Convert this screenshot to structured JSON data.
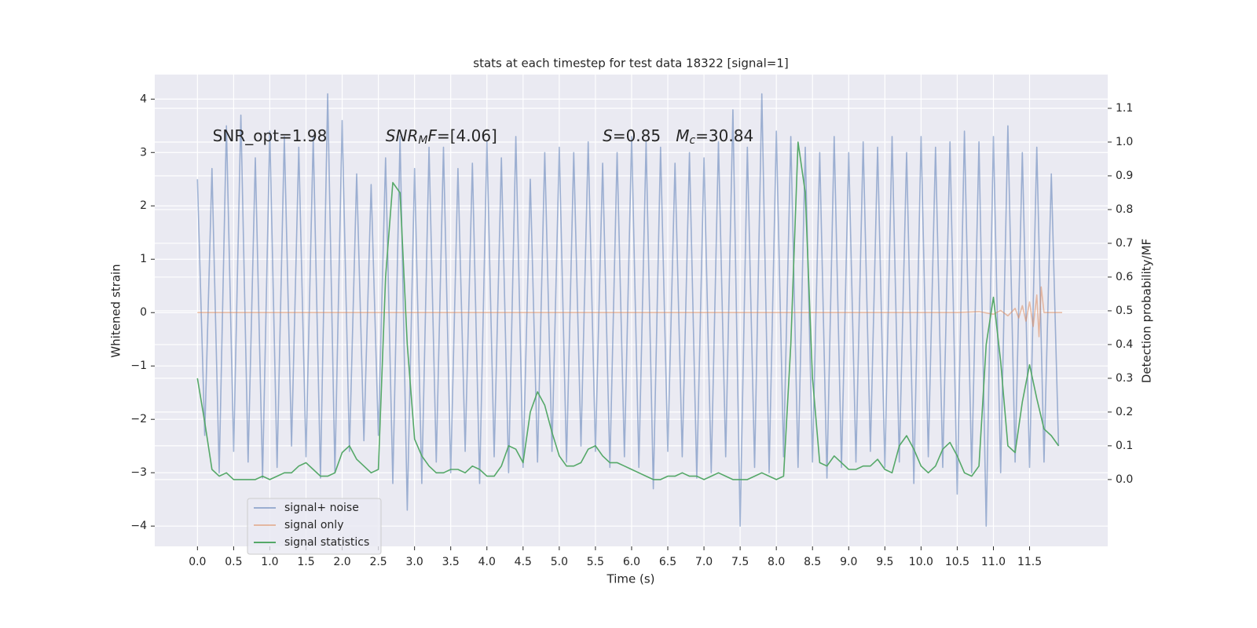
{
  "chart_data": {
    "type": "line",
    "title": "stats at each timestep for test data 18322 [signal=1]",
    "xlabel": "Time (s)",
    "ylabel": "Whitened strain",
    "y2label": "Detection probability/MF",
    "annotations": [
      {
        "parts": [
          {
            "text": "SNR_opt=1.98",
            "style": "normal"
          }
        ]
      },
      {
        "parts": [
          {
            "text": "SNR",
            "style": "italic"
          },
          {
            "text": "M",
            "style": "italic-sub"
          },
          {
            "text": "F",
            "style": "italic"
          },
          {
            "text": "=[4.06]",
            "style": "normal"
          }
        ]
      },
      {
        "parts": [
          {
            "text": "S",
            "style": "italic"
          },
          {
            "text": "=0.85   ",
            "style": "normal"
          },
          {
            "text": "M",
            "style": "italic"
          },
          {
            "text": "c",
            "style": "italic-sub"
          },
          {
            "text": "=30.84",
            "style": "normal"
          }
        ]
      }
    ],
    "x": [
      0.0,
      0.1,
      0.2,
      0.3,
      0.4,
      0.5,
      0.6,
      0.7,
      0.8,
      0.9,
      1.0,
      1.1,
      1.2,
      1.3,
      1.4,
      1.5,
      1.6,
      1.7,
      1.8,
      1.9,
      2.0,
      2.1,
      2.2,
      2.3,
      2.4,
      2.5,
      2.6,
      2.7,
      2.8,
      2.9,
      3.0,
      3.1,
      3.2,
      3.3,
      3.4,
      3.5,
      3.6,
      3.7,
      3.8,
      3.9,
      4.0,
      4.1,
      4.2,
      4.3,
      4.4,
      4.5,
      4.6,
      4.7,
      4.8,
      4.9,
      5.0,
      5.1,
      5.2,
      5.3,
      5.4,
      5.5,
      5.6,
      5.7,
      5.8,
      5.9,
      6.0,
      6.1,
      6.2,
      6.3,
      6.4,
      6.5,
      6.6,
      6.7,
      6.8,
      6.9,
      7.0,
      7.1,
      7.2,
      7.3,
      7.4,
      7.5,
      7.6,
      7.7,
      7.8,
      7.9,
      8.0,
      8.1,
      8.2,
      8.3,
      8.4,
      8.5,
      8.6,
      8.7,
      8.8,
      8.9,
      9.0,
      9.1,
      9.2,
      9.3,
      9.4,
      9.5,
      9.6,
      9.7,
      9.8,
      9.9,
      10.0,
      10.1,
      10.2,
      10.3,
      10.4,
      10.5,
      10.6,
      10.7,
      10.8,
      10.9,
      11.0,
      11.1,
      11.2,
      11.3,
      11.4,
      11.5,
      11.6,
      11.7,
      11.8,
      11.9
    ],
    "series": [
      {
        "name": "signal+ noise",
        "color": "#4c72b0",
        "opacity": 0.5,
        "values": [
          2.5,
          -2.3,
          2.7,
          -3.0,
          3.5,
          -2.6,
          3.7,
          -2.8,
          2.9,
          -3.1,
          3.4,
          -2.9,
          3.3,
          -2.5,
          3.1,
          -2.7,
          3.3,
          -3.1,
          4.1,
          -3.0,
          3.6,
          -2.6,
          2.6,
          -2.4,
          2.4,
          -2.3,
          2.9,
          -3.2,
          3.3,
          -3.7,
          2.7,
          -3.2,
          3.1,
          -2.8,
          3.1,
          -3.0,
          2.7,
          -2.6,
          2.8,
          -3.2,
          3.2,
          -2.7,
          2.9,
          -3.0,
          3.3,
          -2.9,
          2.5,
          -2.8,
          3.0,
          -2.6,
          3.1,
          -2.8,
          3.0,
          -2.5,
          3.2,
          -2.6,
          2.8,
          -2.9,
          3.0,
          -2.7,
          3.3,
          -2.9,
          3.2,
          -3.3,
          3.1,
          -2.6,
          2.8,
          -2.7,
          3.0,
          -3.1,
          2.9,
          -3.0,
          3.2,
          -2.7,
          3.8,
          -4.0,
          3.1,
          -2.9,
          4.1,
          -3.0,
          3.4,
          -2.7,
          3.3,
          -2.9,
          3.1,
          -2.8,
          3.0,
          -3.1,
          3.3,
          -2.9,
          3.0,
          -2.8,
          3.2,
          -2.6,
          3.1,
          -2.9,
          3.3,
          -2.8,
          3.0,
          -3.2,
          3.3,
          -2.7,
          3.1,
          -2.9,
          3.2,
          -3.4,
          3.4,
          -3.0,
          3.2,
          -4.0,
          3.3,
          -3.0,
          3.5,
          -2.8,
          3.0,
          -2.9,
          3.1,
          -2.8,
          2.6,
          -2.5
        ]
      },
      {
        "name": "signal only",
        "color": "#dd8452",
        "opacity": 0.5,
        "x": [
          0.0,
          10.5,
          10.8,
          11.0,
          11.1,
          11.2,
          11.3,
          11.35,
          11.4,
          11.45,
          11.5,
          11.55,
          11.6,
          11.63,
          11.66,
          11.7,
          11.95
        ],
        "values": [
          0,
          0,
          0.02,
          -0.03,
          0.04,
          -0.06,
          0.08,
          -0.1,
          0.13,
          -0.16,
          0.2,
          -0.26,
          0.33,
          -0.45,
          0.48,
          0,
          0
        ]
      },
      {
        "name": "signal statistics",
        "color": "#55a868",
        "opacity": 1,
        "axis": "y2",
        "values": [
          0.3,
          0.17,
          0.03,
          0.01,
          0.02,
          0.0,
          0.0,
          0.0,
          0.0,
          0.01,
          0.0,
          0.01,
          0.02,
          0.02,
          0.04,
          0.05,
          0.03,
          0.01,
          0.01,
          0.02,
          0.08,
          0.1,
          0.06,
          0.04,
          0.02,
          0.03,
          0.6,
          0.88,
          0.85,
          0.4,
          0.12,
          0.07,
          0.04,
          0.02,
          0.02,
          0.03,
          0.03,
          0.02,
          0.04,
          0.03,
          0.01,
          0.01,
          0.04,
          0.1,
          0.09,
          0.05,
          0.2,
          0.26,
          0.22,
          0.14,
          0.07,
          0.04,
          0.04,
          0.05,
          0.09,
          0.1,
          0.07,
          0.05,
          0.05,
          0.04,
          0.03,
          0.02,
          0.01,
          0.0,
          0.0,
          0.01,
          0.01,
          0.02,
          0.01,
          0.01,
          0.0,
          0.01,
          0.02,
          0.01,
          0.0,
          0.0,
          0.0,
          0.01,
          0.02,
          0.01,
          0.0,
          0.01,
          0.4,
          1.0,
          0.85,
          0.3,
          0.05,
          0.04,
          0.07,
          0.05,
          0.03,
          0.03,
          0.04,
          0.04,
          0.06,
          0.03,
          0.02,
          0.1,
          0.13,
          0.09,
          0.04,
          0.02,
          0.04,
          0.09,
          0.11,
          0.07,
          0.02,
          0.01,
          0.04,
          0.4,
          0.54,
          0.35,
          0.1,
          0.08,
          0.23,
          0.34,
          0.24,
          0.15,
          0.13,
          0.1
        ]
      }
    ],
    "xlim": [
      -0.59,
      12.58
    ],
    "ylim": [
      -4.38,
      4.46
    ],
    "y2lim": [
      -0.198,
      1.2
    ],
    "xticks": [
      {
        "value": 0,
        "label": "0.0"
      },
      0.5,
      {
        "value": 1,
        "label": "1.0"
      },
      1.5,
      {
        "value": 2,
        "label": "2.0"
      },
      2.5,
      {
        "value": 3,
        "label": "3.0"
      },
      3.5,
      {
        "value": 4,
        "label": "4.0"
      },
      4.5,
      {
        "value": 5,
        "label": "5.0"
      },
      5.5,
      {
        "value": 6,
        "label": "6.0"
      },
      6.5,
      {
        "value": 7,
        "label": "7.0"
      },
      7.5,
      {
        "value": 8,
        "label": "8.0"
      },
      8.5,
      {
        "value": 9,
        "label": "9.0"
      },
      9.5,
      {
        "value": 10,
        "label": "10.0"
      },
      10.5,
      {
        "value": 11,
        "label": "11.0"
      },
      11.5
    ],
    "yticks": [
      {
        "value": -4,
        "label": "−4"
      },
      {
        "value": -3,
        "label": "−3"
      },
      {
        "value": -2,
        "label": "−2"
      },
      {
        "value": -1,
        "label": "−1"
      },
      0,
      1,
      2,
      3,
      4
    ],
    "y2ticks": [
      {
        "value": 0,
        "label": "0.0"
      },
      0.1,
      0.2,
      0.3,
      0.4,
      0.5,
      0.6,
      0.7,
      0.8,
      0.9,
      {
        "value": 1,
        "label": "1.0"
      },
      1.1
    ],
    "grid": true,
    "legend": "lower left"
  }
}
